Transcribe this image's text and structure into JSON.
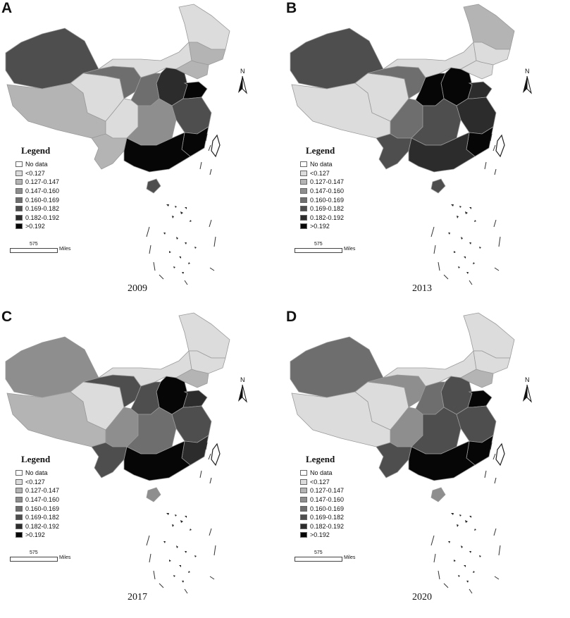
{
  "colors": {
    "no_data": "#ffffff",
    "lt_0_127": "#dcdcdc",
    "c_0_127_0_147": "#b4b4b4",
    "c_0_147_0_160": "#8e8e8e",
    "c_0_160_0_169": "#6e6e6e",
    "c_0_169_0_182": "#4e4e4e",
    "c_0_182_0_192": "#2c2c2c",
    "gt_0_192": "#060606"
  },
  "legend": {
    "title": "Legend",
    "items": [
      {
        "label": "No data",
        "color_key": "no_data"
      },
      {
        "label": "<0.127",
        "color_key": "lt_0_127"
      },
      {
        "label": "0.127-0.147",
        "color_key": "c_0_127_0_147"
      },
      {
        "label": "0.147-0.160",
        "color_key": "c_0_147_0_160"
      },
      {
        "label": "0.160-0.169",
        "color_key": "c_0_160_0_169"
      },
      {
        "label": "0.169-0.182",
        "color_key": "c_0_169_0_182"
      },
      {
        "label": "0.182-0.192",
        "color_key": "c_0_182_0_192"
      },
      {
        "label": ">0.192",
        "color_key": "gt_0_192"
      }
    ]
  },
  "scale": {
    "value": "575",
    "unit": "Miles"
  },
  "north_label": "N",
  "panels": [
    {
      "letter": "A",
      "year": "2009",
      "regions": {
        "xinjiang": "c_0_169_0_182",
        "tibet": "c_0_127_0_147",
        "qinghai": "lt_0_127",
        "gansu": "c_0_160_0_169",
        "inner_mongolia": "lt_0_127",
        "heilongjiang": "lt_0_127",
        "jilin": "c_0_127_0_147",
        "liaoning": "c_0_127_0_147",
        "north_china": "c_0_182_0_192",
        "shandong": "gt_0_192",
        "central_north": "c_0_160_0_169",
        "sichuan": "lt_0_127",
        "yunnan": "c_0_127_0_147",
        "central": "c_0_147_0_160",
        "east_coast": "c_0_169_0_182",
        "fujian": "gt_0_192",
        "south": "gt_0_192",
        "hainan": "c_0_169_0_182"
      }
    },
    {
      "letter": "B",
      "year": "2013",
      "regions": {
        "xinjiang": "c_0_169_0_182",
        "tibet": "lt_0_127",
        "qinghai": "lt_0_127",
        "gansu": "c_0_160_0_169",
        "inner_mongolia": "lt_0_127",
        "heilongjiang": "c_0_127_0_147",
        "jilin": "lt_0_127",
        "liaoning": "lt_0_127",
        "north_china": "gt_0_192",
        "shandong": "c_0_182_0_192",
        "central_north": "gt_0_192",
        "sichuan": "c_0_160_0_169",
        "yunnan": "c_0_169_0_182",
        "central": "c_0_169_0_182",
        "east_coast": "c_0_182_0_192",
        "fujian": "gt_0_192",
        "south": "c_0_182_0_192",
        "hainan": "c_0_169_0_182"
      }
    },
    {
      "letter": "C",
      "year": "2017",
      "regions": {
        "xinjiang": "c_0_147_0_160",
        "tibet": "c_0_127_0_147",
        "qinghai": "lt_0_127",
        "gansu": "c_0_169_0_182",
        "inner_mongolia": "lt_0_127",
        "heilongjiang": "lt_0_127",
        "jilin": "lt_0_127",
        "liaoning": "c_0_127_0_147",
        "north_china": "gt_0_192",
        "shandong": "c_0_182_0_192",
        "central_north": "c_0_169_0_182",
        "sichuan": "c_0_147_0_160",
        "yunnan": "c_0_169_0_182",
        "central": "c_0_160_0_169",
        "east_coast": "c_0_169_0_182",
        "fujian": "c_0_182_0_192",
        "south": "gt_0_192",
        "hainan": "c_0_147_0_160"
      }
    },
    {
      "letter": "D",
      "year": "2020",
      "regions": {
        "xinjiang": "c_0_160_0_169",
        "tibet": "lt_0_127",
        "qinghai": "lt_0_127",
        "gansu": "c_0_147_0_160",
        "inner_mongolia": "lt_0_127",
        "heilongjiang": "lt_0_127",
        "jilin": "lt_0_127",
        "liaoning": "c_0_127_0_147",
        "north_china": "c_0_169_0_182",
        "shandong": "gt_0_192",
        "central_north": "c_0_160_0_169",
        "sichuan": "c_0_147_0_160",
        "yunnan": "c_0_169_0_182",
        "central": "c_0_169_0_182",
        "east_coast": "c_0_169_0_182",
        "fujian": "gt_0_192",
        "south": "gt_0_192",
        "hainan": "c_0_147_0_160"
      }
    }
  ]
}
